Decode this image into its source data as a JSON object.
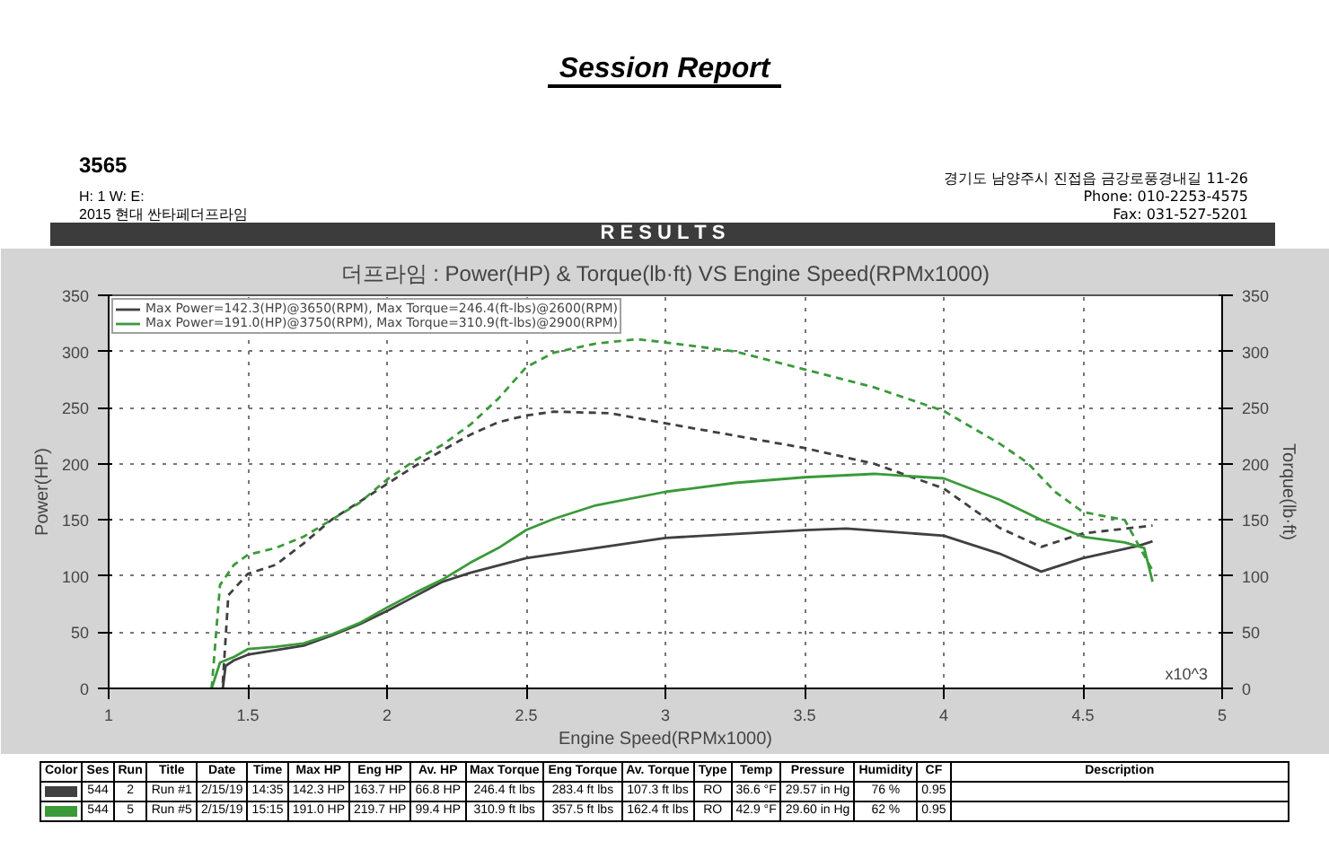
{
  "chart_data": {
    "type": "line",
    "title": "더프라임 : Power(HP) & Torque(lb·ft) VS Engine Speed(RPMx1000)",
    "xlabel": "Engine Speed(RPMx1000)",
    "ylabel": "Power(HP)",
    "y2label": "Torque(lb·ft)",
    "xlim": [
      1,
      5
    ],
    "xticks": [
      1,
      1.5,
      2,
      2.5,
      3,
      3.5,
      4,
      4.5,
      5
    ],
    "ylim": [
      0,
      350
    ],
    "yticks": [
      0,
      50,
      100,
      150,
      200,
      250,
      300,
      350
    ],
    "y2lim": [
      0,
      350
    ],
    "y2ticks": [
      0,
      50,
      100,
      150,
      200,
      250,
      300,
      350
    ],
    "grid": true,
    "legend": "top left",
    "marker": "none",
    "series": [
      {
        "name": "Max Power=142.3(HP)@3650(RPM), Max Torque=246.4(ft-lbs)@2600(RPM)",
        "color": "#404040",
        "line_style": "solid",
        "x": [
          1.41,
          1.42,
          1.45,
          1.5,
          1.6,
          1.7,
          1.8,
          1.9,
          2.0,
          2.1,
          2.2,
          2.3,
          2.5,
          2.75,
          3.0,
          3.5,
          3.65,
          4.0,
          4.2,
          4.35,
          4.5,
          4.7,
          4.75
        ],
        "values": [
          0,
          20,
          25,
          30,
          34,
          38,
          47,
          57,
          69,
          82,
          95,
          103,
          116,
          125,
          134,
          141,
          142.3,
          136,
          120,
          104,
          116,
          127,
          131
        ]
      },
      {
        "color": "#404040",
        "line_style": "dashed",
        "axis": "y2",
        "x": [
          1.41,
          1.43,
          1.5,
          1.6,
          1.7,
          1.8,
          1.9,
          2.0,
          2.1,
          2.2,
          2.3,
          2.4,
          2.5,
          2.6,
          2.8,
          3.0,
          3.25,
          3.5,
          3.75,
          4.0,
          4.2,
          4.35,
          4.5,
          4.75
        ],
        "values": [
          5,
          83,
          102,
          110,
          129,
          150,
          166,
          182,
          198,
          212,
          226,
          237,
          243,
          246.4,
          245,
          236,
          225,
          214,
          200,
          178,
          143,
          126,
          138,
          145
        ]
      },
      {
        "name": "Max Power=191.0(HP)@3750(RPM), Max Torque=310.9(ft-lbs)@2900(RPM)",
        "color": "#3a9a3a",
        "line_style": "solid",
        "x": [
          1.37,
          1.4,
          1.45,
          1.5,
          1.6,
          1.7,
          1.8,
          1.9,
          2.0,
          2.1,
          2.2,
          2.3,
          2.4,
          2.5,
          2.6,
          2.75,
          3.0,
          3.25,
          3.5,
          3.75,
          4.0,
          4.2,
          4.35,
          4.5,
          4.65,
          4.72,
          4.75
        ],
        "values": [
          0,
          23,
          28,
          35,
          37,
          40,
          48,
          58,
          72,
          85,
          97,
          112,
          125,
          141,
          151,
          163,
          175,
          183,
          188,
          191.0,
          187,
          168,
          150,
          135,
          130,
          125,
          95
        ]
      },
      {
        "color": "#3a9a3a",
        "line_style": "dashed",
        "axis": "y2",
        "x": [
          1.37,
          1.4,
          1.45,
          1.5,
          1.6,
          1.7,
          1.8,
          1.9,
          2.0,
          2.1,
          2.2,
          2.3,
          2.4,
          2.5,
          2.6,
          2.75,
          2.9,
          3.0,
          3.25,
          3.5,
          3.75,
          4.0,
          4.2,
          4.3,
          4.4,
          4.5,
          4.65,
          4.75
        ],
        "values": [
          0,
          92,
          110,
          119,
          125,
          135,
          150,
          165,
          186,
          203,
          217,
          235,
          258,
          286,
          299,
          307,
          310.9,
          308,
          300,
          284,
          268,
          247,
          218,
          201,
          175,
          157,
          150,
          105
        ]
      }
    ],
    "annotations": [
      "Session Report",
      "3565",
      "H:  1    W:       E:",
      "2015 현대 싼타페더프라임",
      "경기도 남양주시 진접읍 금강로풍경내길 11-26",
      "Phone: 010-2253-4575",
      "Fax:      031-527-5201",
      "R E S U L T S",
      "x10^3",
      "Color",
      "Ses",
      "Run",
      "Title",
      "Date",
      "Time",
      "Max HP",
      "Eng HP",
      "Av. HP",
      "Max Torque",
      "Eng Torque",
      "Av. Torque",
      "Type",
      "Temp",
      "Pressure",
      "Humidity",
      "CF",
      "Description",
      "544",
      "2",
      "Run #1",
      "2/15/19",
      "14:35",
      "142.3 HP",
      "163.7 HP",
      "66.8 HP",
      "246.4 ft lbs",
      "283.4 ft lbs",
      "107.3 ft lbs",
      "RO",
      "36.6 °F",
      "29.57 in Hg",
      "76 %",
      "0.95",
      "544",
      "5",
      "Run #5",
      "2/15/19",
      "15:15",
      "191.0 HP",
      "219.7 HP",
      "99.4 HP",
      "310.9 ft lbs",
      "357.5 ft lbs",
      "162.4 ft lbs",
      "RO",
      "42.9 °F",
      "29.60 in Hg",
      "62 %",
      "0.95"
    ]
  }
}
